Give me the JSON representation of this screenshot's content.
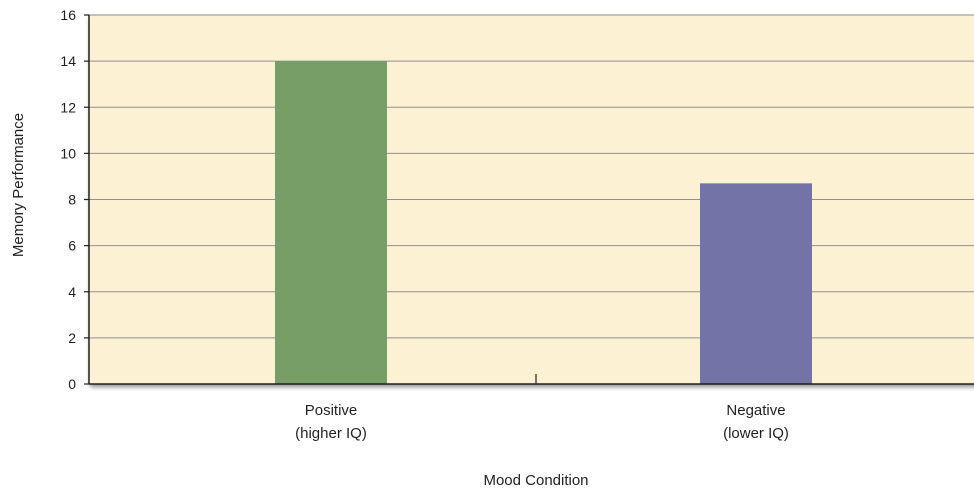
{
  "colors": {
    "plot_background": "#fdf1d3",
    "gridline": "#8f8f92",
    "axis": "#231f20",
    "text": "#231f20"
  },
  "chart_data": {
    "type": "bar",
    "title": "",
    "xlabel": "Mood Condition",
    "ylabel": "Memory Performance",
    "ylim": [
      0,
      16
    ],
    "yticks": [
      0,
      2,
      4,
      6,
      8,
      10,
      12,
      14,
      16
    ],
    "grid": true,
    "categories": [
      {
        "line1": "Positive",
        "line2": "(higher IQ)"
      },
      {
        "line1": "Negative",
        "line2": "(lower IQ)"
      }
    ],
    "values": [
      14,
      8.7
    ],
    "bar_colors": [
      "#769e66",
      "#7473a8"
    ]
  }
}
